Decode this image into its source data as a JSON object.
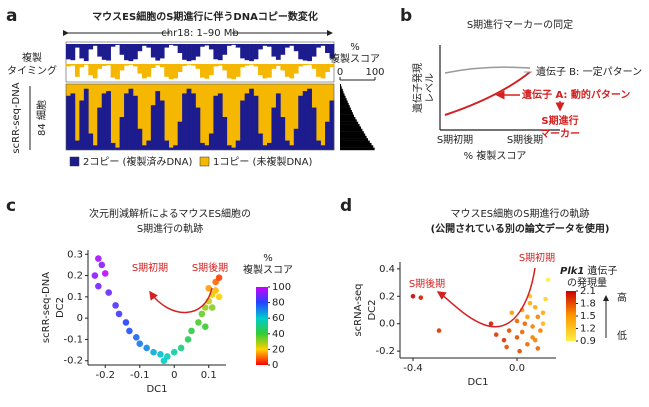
{
  "chart_data": [
    {
      "type": "heatmap",
      "panel": "a",
      "title": "マウスES細胞のS期進行に伴うDNAコピー数変化",
      "span_label": "chr18: 1–90 Mb",
      "track_label_lines": [
        "複製",
        "タイミング"
      ],
      "ylabel": "scRR-seq-DNA",
      "cells_label": "84 細胞",
      "score_label_lines": [
        "%",
        "複製スコア"
      ],
      "score_lim": [
        0,
        100
      ],
      "score_ticks": [
        0,
        100
      ],
      "timing": [
        85,
        90,
        20,
        80,
        95,
        30,
        10,
        70,
        88,
        92,
        15,
        5,
        60,
        90,
        95,
        85,
        40,
        10,
        20,
        75,
        92,
        80,
        20,
        5,
        10,
        50,
        88,
        95,
        90,
        70,
        15,
        8,
        30,
        85,
        90,
        60,
        10,
        5,
        20,
        80,
        90,
        95,
        85,
        30,
        10,
        15,
        70,
        88,
        60,
        20,
        10,
        40,
        85,
        92,
        95,
        70,
        20,
        10,
        50,
        80
      ],
      "scores": [
        3,
        5,
        8,
        10,
        13,
        16,
        19,
        22,
        25,
        28,
        31,
        34,
        37,
        40,
        44,
        48,
        52,
        56,
        60,
        64,
        68,
        72,
        76,
        80,
        85,
        90,
        95,
        99
      ],
      "series": [
        {
          "name": "2コピー (複製済みDNA)",
          "color": "#1c1c8f"
        },
        {
          "name": "1コピー (未複製DNA)",
          "color": "#f5b700"
        }
      ]
    },
    {
      "type": "diagram",
      "panel": "b",
      "title": "S期進行マーカーの同定",
      "ylabel_lines": [
        "遺伝子発現",
        "レベル"
      ],
      "xlabel": "% 複製スコア",
      "xtick_labels": [
        "S期初期",
        "S期後期"
      ],
      "gene_b": "遺伝子 B: 一定パターン",
      "gene_a": "遺伝子 A: 動的パターン",
      "marker_lines": [
        "S期進行",
        "マーカー"
      ]
    },
    {
      "type": "scatter",
      "panel": "c",
      "title_lines": [
        "次元削減解析によるマウスES細胞の",
        "S期進行の軌跡"
      ],
      "ylabel_outer": "scRR-seq-DNA",
      "ylabel": "DC2",
      "xlabel": "DC1",
      "xlim": [
        -0.25,
        0.15
      ],
      "ylim": [
        -0.22,
        0.32
      ],
      "xticks": [
        -0.2,
        -0.1,
        0,
        0.1
      ],
      "yticks": [
        0.3,
        0.2,
        0.1,
        0,
        -0.1,
        -0.2
      ],
      "x": [
        -0.22,
        -0.21,
        -0.2,
        -0.22,
        -0.19,
        -0.17,
        -0.16,
        -0.14,
        -0.13,
        -0.11,
        -0.1,
        -0.08,
        -0.06,
        -0.04,
        -0.02,
        0,
        0.02,
        0.04,
        0.05,
        0.07,
        0.08,
        0.09,
        0.1,
        0.11,
        0.12,
        0.1,
        0.12,
        0.13,
        0.11,
        0.09,
        -0.03,
        0.13,
        -0.23
      ],
      "y": [
        0.28,
        0.25,
        0.21,
        0.15,
        0.12,
        0.06,
        0.02,
        -0.02,
        -0.06,
        -0.09,
        -0.12,
        -0.14,
        -0.16,
        -0.17,
        -0.18,
        -0.16,
        -0.14,
        -0.1,
        -0.06,
        -0.02,
        0.02,
        0.05,
        0.08,
        0.11,
        0.13,
        0.14,
        0.17,
        0.19,
        0.05,
        -0.04,
        -0.2,
        0.1,
        0.2
      ],
      "color_values": [
        95,
        92,
        98,
        90,
        88,
        85,
        84,
        80,
        78,
        75,
        72,
        70,
        65,
        62,
        58,
        55,
        50,
        45,
        42,
        38,
        35,
        30,
        26,
        22,
        18,
        15,
        10,
        6,
        32,
        40,
        60,
        20,
        93
      ],
      "colormap": [
        "#ff0000",
        "#ffd000",
        "#33cc33",
        "#00cccc",
        "#2244ff",
        "#cc00ff"
      ],
      "clim": [
        0,
        100
      ],
      "cticks": [
        0,
        20,
        40,
        60,
        80,
        100
      ],
      "colorbar_label_lines": [
        "%",
        "複製スコア"
      ],
      "annotations": [
        "S期初期",
        "S期後期"
      ]
    },
    {
      "type": "scatter",
      "panel": "d",
      "title_lines": [
        "マウスES細胞のS期進行の軌跡",
        "(公開されている別の論文データを使用)"
      ],
      "ylabel_outer": "scRNA-seq",
      "ylabel": "DC2",
      "xlabel": "DC1",
      "xlim": [
        -0.45,
        0.15
      ],
      "ylim": [
        -0.25,
        0.45
      ],
      "xticks": [
        -0.4,
        {
          "value": 0,
          "label": "0.0"
        }
      ],
      "yticks": [
        0.4,
        0.2,
        {
          "value": 0,
          "label": "0.0"
        },
        -0.2
      ],
      "x": [
        -0.4,
        -0.37,
        -0.3,
        0.12,
        0.02,
        0.05,
        0.08,
        0.0,
        -0.03,
        0.06,
        0.1,
        0.04,
        -0.05,
        0.01,
        0.07,
        0.09,
        -0.02,
        0.03,
        0.11,
        0.06,
        -0.08,
        0.0,
        0.04,
        0.08,
        -0.1,
        0.02,
        0.05,
        -0.04,
        0.1,
        0.07
      ],
      "y": [
        0.2,
        0.19,
        -0.05,
        0.32,
        0.1,
        0.15,
        0.05,
        0.02,
        -0.05,
        -0.1,
        0.0,
        -0.15,
        -0.12,
        -0.2,
        0.12,
        -0.05,
        0.08,
        0.0,
        0.18,
        -0.02,
        -0.08,
        -0.1,
        0.05,
        -0.18,
        0.0,
        -0.06,
        0.2,
        -0.17,
        0.08,
        -0.12
      ],
      "color_values": [
        2.1,
        2.0,
        1.9,
        0.9,
        1.5,
        1.4,
        1.6,
        1.7,
        1.8,
        1.6,
        1.3,
        1.7,
        1.9,
        1.8,
        1.4,
        1.6,
        1.5,
        1.7,
        1.1,
        1.6,
        1.9,
        1.8,
        1.5,
        1.7,
        2.0,
        1.7,
        1.2,
        1.8,
        1.4,
        1.6
      ],
      "colormap": [
        "#ffee44",
        "#ff9900",
        "#cc0000"
      ],
      "clim": [
        0.9,
        2.1
      ],
      "cticks": [
        0.9,
        1.2,
        1.5,
        1.8,
        2.1
      ],
      "colorbar_gene": "Plk1",
      "colorbar_label_lines": [
        "遺伝子",
        "の発現量"
      ],
      "high": "高",
      "low": "低",
      "annotations": [
        "S期初期",
        "S期後期"
      ]
    }
  ]
}
